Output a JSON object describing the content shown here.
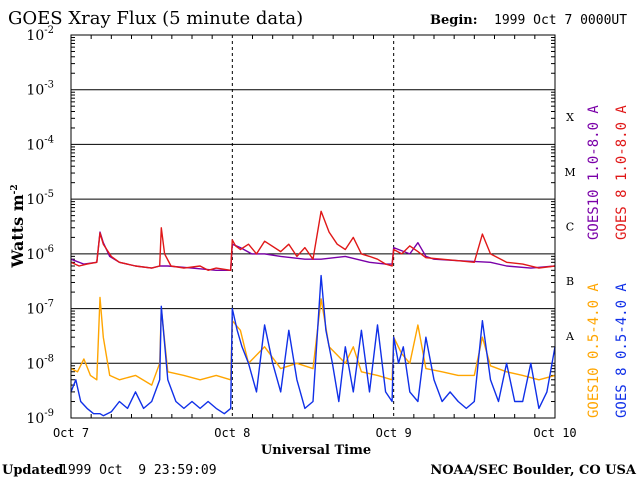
{
  "chart_data": {
    "type": "line",
    "title": "GOES Xray Flux (5 minute data)",
    "begin_label": "Begin:",
    "begin_value": "1999 Oct 7 0000UT",
    "xlabel": "Universal Time",
    "ylabel": "Watts m",
    "ylabel_sup": "-2",
    "y_scale": "log",
    "ylim": [
      1e-09,
      0.01
    ],
    "xlim": [
      0,
      3
    ],
    "x_unit": "days since 1999 Oct 7 0000UT",
    "y_tick_powers": [
      "-2",
      "-3",
      "-4",
      "-5",
      "-6",
      "-7",
      "-8",
      "-9"
    ],
    "x_ticks": [
      {
        "x": 0,
        "label": "Oct 7"
      },
      {
        "x": 1,
        "label": "Oct 8"
      },
      {
        "x": 2,
        "label": "Oct 9"
      },
      {
        "x": 3,
        "label": "Oct 10"
      }
    ],
    "flare_classes": [
      {
        "label": "X",
        "y": 0.000316
      },
      {
        "label": "M",
        "y": 3.16e-05
      },
      {
        "label": "C",
        "y": 3.16e-06
      },
      {
        "label": "B",
        "y": 3.16e-07
      },
      {
        "label": "A",
        "y": 3.16e-08
      }
    ],
    "grid": true,
    "legend_position": "right (vertical)",
    "series": [
      {
        "name": "GOES10 1.0-8.0 A",
        "color": "#7a00a8",
        "x": [
          0,
          0.08,
          0.16,
          0.18,
          0.2,
          0.24,
          0.3,
          0.4,
          0.5,
          0.55,
          0.6,
          0.75,
          0.9,
          0.99,
          1.0,
          1.05,
          1.12,
          1.2,
          1.3,
          1.45,
          1.55,
          1.7,
          1.85,
          1.95,
          1.99,
          2.0,
          2.1,
          2.15,
          2.2,
          2.25,
          2.4,
          2.6,
          2.7,
          2.85,
          3.0
        ],
        "values": [
          8e-07,
          6.5e-07,
          7e-07,
          2.5e-06,
          1.6e-06,
          9e-07,
          7e-07,
          6e-07,
          5.5e-07,
          6e-07,
          6e-07,
          5.5e-07,
          5e-07,
          5e-07,
          1.5e-06,
          1.3e-06,
          1e-06,
          1e-06,
          9e-07,
          8e-07,
          8e-07,
          9e-07,
          7e-07,
          6.5e-07,
          6.5e-07,
          1.3e-06,
          1e-06,
          1.6e-06,
          9e-07,
          8e-07,
          7.5e-07,
          7e-07,
          6e-07,
          5.5e-07,
          6e-07
        ]
      },
      {
        "name": "GOES 8 1.0-8.0 A",
        "color": "#e01818",
        "x": [
          0,
          0.05,
          0.1,
          0.16,
          0.18,
          0.2,
          0.25,
          0.3,
          0.4,
          0.5,
          0.55,
          0.56,
          0.58,
          0.62,
          0.7,
          0.8,
          0.85,
          0.9,
          0.99,
          1.0,
          1.02,
          1.05,
          1.1,
          1.15,
          1.2,
          1.3,
          1.35,
          1.4,
          1.45,
          1.5,
          1.55,
          1.6,
          1.65,
          1.7,
          1.75,
          1.8,
          1.85,
          1.9,
          1.95,
          1.99,
          2.0,
          2.05,
          2.1,
          2.15,
          2.2,
          2.3,
          2.4,
          2.5,
          2.55,
          2.6,
          2.7,
          2.8,
          2.9,
          3.0
        ],
        "values": [
          7e-07,
          6e-07,
          6.5e-07,
          7e-07,
          2.4e-06,
          1.5e-06,
          9e-07,
          7e-07,
          6e-07,
          5.5e-07,
          6e-07,
          3e-06,
          1e-06,
          6e-07,
          5.5e-07,
          6e-07,
          5e-07,
          5.5e-07,
          5e-07,
          1.8e-06,
          1.4e-06,
          1.2e-06,
          1.5e-06,
          1e-06,
          1.7e-06,
          1.1e-06,
          1.5e-06,
          9e-07,
          1.3e-06,
          8e-07,
          6e-06,
          2.5e-06,
          1.5e-06,
          1.2e-06,
          2e-06,
          1e-06,
          9e-07,
          8e-07,
          6.5e-07,
          6e-07,
          1.2e-06,
          1e-06,
          1.4e-06,
          1.1e-06,
          8.5e-07,
          8e-07,
          7.5e-07,
          7e-07,
          2.3e-06,
          1e-06,
          7e-07,
          6.5e-07,
          5.5e-07,
          6e-07
        ]
      },
      {
        "name": "GOES10 0.5-4.0 A",
        "color": "#ffa500",
        "x": [
          0,
          0.04,
          0.08,
          0.12,
          0.16,
          0.18,
          0.2,
          0.24,
          0.3,
          0.4,
          0.5,
          0.55,
          0.56,
          0.6,
          0.7,
          0.8,
          0.9,
          0.99,
          1.0,
          1.05,
          1.1,
          1.2,
          1.3,
          1.4,
          1.5,
          1.55,
          1.6,
          1.7,
          1.75,
          1.8,
          1.9,
          1.99,
          2.0,
          2.05,
          2.1,
          2.15,
          2.2,
          2.3,
          2.4,
          2.5,
          2.55,
          2.6,
          2.7,
          2.8,
          2.9,
          3.0
        ],
        "values": [
          8e-09,
          7e-09,
          1.2e-08,
          6e-09,
          5e-09,
          1.6e-07,
          3e-08,
          6e-09,
          5e-09,
          6e-09,
          4e-09,
          1e-08,
          1e-07,
          7e-09,
          6e-09,
          5e-09,
          6e-09,
          5e-09,
          6e-08,
          4e-08,
          1e-08,
          2e-08,
          8e-09,
          1e-08,
          8e-09,
          1.5e-07,
          2e-08,
          1e-08,
          2e-08,
          7e-09,
          6e-09,
          5e-09,
          3e-08,
          1.5e-08,
          1e-08,
          5e-08,
          8e-09,
          7e-09,
          6e-09,
          6e-09,
          3e-08,
          9e-09,
          7e-09,
          6e-09,
          5e-09,
          6e-09
        ]
      },
      {
        "name": "GOES 8 0.5-4.0 A",
        "color": "#1030e8",
        "x": [
          0,
          0.03,
          0.06,
          0.1,
          0.14,
          0.18,
          0.2,
          0.25,
          0.3,
          0.35,
          0.4,
          0.45,
          0.5,
          0.55,
          0.56,
          0.6,
          0.65,
          0.7,
          0.75,
          0.8,
          0.85,
          0.9,
          0.95,
          0.99,
          1.0,
          1.03,
          1.06,
          1.1,
          1.15,
          1.2,
          1.25,
          1.3,
          1.35,
          1.4,
          1.45,
          1.5,
          1.55,
          1.58,
          1.62,
          1.66,
          1.7,
          1.75,
          1.8,
          1.85,
          1.9,
          1.95,
          1.99,
          2.0,
          2.03,
          2.06,
          2.1,
          2.15,
          2.2,
          2.25,
          2.3,
          2.35,
          2.4,
          2.45,
          2.5,
          2.55,
          2.6,
          2.65,
          2.7,
          2.75,
          2.8,
          2.85,
          2.9,
          2.95,
          3.0
        ],
        "values": [
          3e-09,
          5e-09,
          2e-09,
          1.5e-09,
          1.2e-09,
          1.2e-09,
          1.1e-09,
          1.3e-09,
          2e-09,
          1.5e-09,
          3e-09,
          1.5e-09,
          2e-09,
          5e-09,
          1.1e-07,
          5e-09,
          2e-09,
          1.5e-09,
          2e-09,
          1.5e-09,
          2e-09,
          1.5e-09,
          1.2e-09,
          1.5e-09,
          1e-07,
          4e-08,
          2e-08,
          1e-08,
          3e-09,
          5e-08,
          1e-08,
          3e-09,
          4e-08,
          5e-09,
          1.5e-09,
          2e-09,
          4e-07,
          4e-08,
          1e-08,
          2e-09,
          2e-08,
          3e-09,
          4e-08,
          3e-09,
          5e-08,
          3e-09,
          2e-09,
          3e-08,
          1e-08,
          2e-08,
          3e-09,
          2e-09,
          3e-08,
          5e-09,
          2e-09,
          3e-09,
          2e-09,
          1.5e-09,
          2e-09,
          6e-08,
          5e-09,
          2e-09,
          1e-08,
          2e-09,
          2e-09,
          1e-08,
          1.5e-09,
          3e-09,
          2e-08
        ]
      }
    ]
  },
  "footer": {
    "updated_label": "Updated",
    "updated_value": "1999 Oct  9 23:59:09",
    "credit": "NOAA/SEC Boulder, CO USA"
  }
}
